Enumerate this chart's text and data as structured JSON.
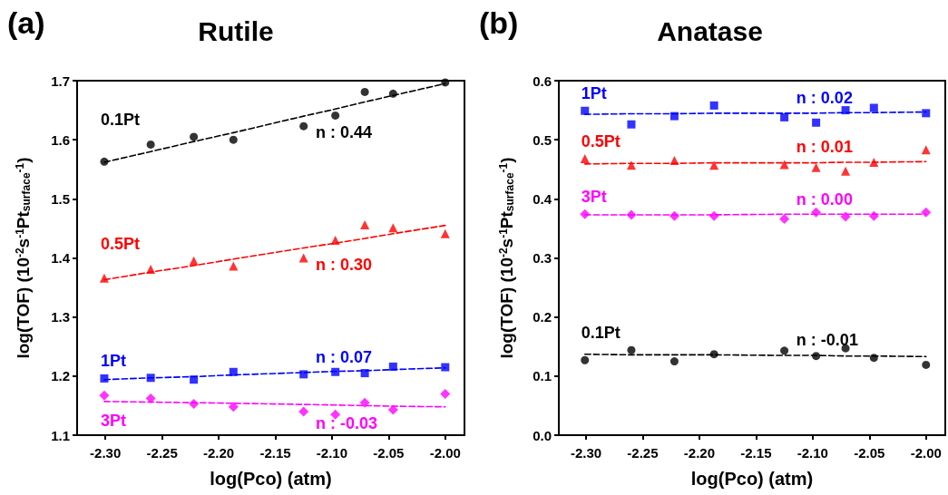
{
  "chart_data": [
    {
      "type": "scatter",
      "title": "Rutile",
      "annotations": [
        "(a)"
      ],
      "xlabel": "log(Pco) (atm)",
      "ylabel": "log(TOF) (10$^{-2}$s$^{-1}$Pt$_{surface}$$^{-1}$)",
      "x": [
        -2.301,
        -2.26,
        -2.222,
        -2.187,
        -2.125,
        -2.097,
        -2.071,
        -2.046,
        -2.0
      ],
      "xlim": [
        -2.325,
        -1.983
      ],
      "xticks": [
        {
          "value": -2.3,
          "label": "-2.30"
        },
        {
          "value": -2.25,
          "label": "-2.25"
        },
        {
          "value": -2.2,
          "label": "-2.20"
        },
        {
          "value": -2.15,
          "label": "-2.15"
        },
        {
          "value": -2.1,
          "label": "-2.10"
        },
        {
          "value": -2.05,
          "label": "-2.05"
        },
        {
          "value": -2.0,
          "label": "-2.00"
        }
      ],
      "ylim": [
        1.1,
        1.7
      ],
      "yticks": [
        1.1,
        1.2,
        1.3,
        1.4,
        1.5,
        1.6,
        1.7
      ],
      "series": [
        {
          "name": "0.1Pt",
          "color": "#000000",
          "marker": "circle",
          "values": [
            1.563,
            1.592,
            1.605,
            1.6,
            1.623,
            1.641,
            1.681,
            1.678,
            1.697
          ]
        },
        {
          "name": "0.5Pt",
          "color": "#ff0000",
          "marker": "triangle",
          "values": [
            1.366,
            1.381,
            1.395,
            1.386,
            1.4,
            1.43,
            1.456,
            1.451,
            1.441
          ]
        },
        {
          "name": "1Pt",
          "color": "#0000ff",
          "marker": "square",
          "values": [
            1.196,
            1.197,
            1.194,
            1.207,
            1.203,
            1.207,
            1.205,
            1.216,
            1.215
          ]
        },
        {
          "name": "3Pt",
          "color": "#ff00ff",
          "marker": "diamond",
          "values": [
            1.167,
            1.162,
            1.153,
            1.148,
            1.14,
            1.135,
            1.155,
            1.143,
            1.17
          ]
        },
        {
          "name": "n : 0.44",
          "type": "line",
          "color": "#000000",
          "marker": "none",
          "line_style": "dashed",
          "values": [
            1.562,
            1.58,
            1.597,
            1.612,
            1.64,
            1.652,
            1.664,
            1.675,
            1.695
          ]
        },
        {
          "name": "n : 0.30",
          "type": "line",
          "color": "#ff0000",
          "marker": "none",
          "line_style": "dashed",
          "values": [
            1.363,
            1.376,
            1.387,
            1.398,
            1.417,
            1.425,
            1.433,
            1.441,
            1.455
          ]
        },
        {
          "name": "n : 0.07",
          "type": "line",
          "color": "#0000ff",
          "marker": "none",
          "line_style": "dashed",
          "values": [
            1.194,
            1.197,
            1.199,
            1.202,
            1.206,
            1.208,
            1.209,
            1.211,
            1.214
          ]
        },
        {
          "name": "n : -0.03",
          "type": "line",
          "color": "#ff00ff",
          "marker": "none",
          "line_style": "dashed",
          "values": [
            1.157,
            1.156,
            1.155,
            1.154,
            1.152,
            1.151,
            1.15,
            1.149,
            1.148
          ]
        }
      ]
    },
    {
      "type": "scatter",
      "title": "Anatase",
      "annotations": [
        "(b)"
      ],
      "xlabel": "log(Pco) (atm)",
      "ylabel": "log(TOF) (10$^{-2}$s$^{-1}$Pt$_{surface}$$^{-1}$)",
      "x": [
        -2.301,
        -2.26,
        -2.222,
        -2.187,
        -2.125,
        -2.097,
        -2.071,
        -2.046,
        -2.0
      ],
      "xlim": [
        -2.324,
        -1.983
      ],
      "xticks": [
        {
          "value": -2.3,
          "label": "-2.30"
        },
        {
          "value": -2.25,
          "label": "-2.25"
        },
        {
          "value": -2.2,
          "label": "-2.20"
        },
        {
          "value": -2.15,
          "label": "-2.15"
        },
        {
          "value": -2.1,
          "label": "-2.10"
        },
        {
          "value": -2.05,
          "label": "-2.05"
        },
        {
          "value": -2.0,
          "label": "-2.00"
        }
      ],
      "ylim": [
        0,
        0.6
      ],
      "yticks": [
        {
          "value": 0,
          "label": "0.0"
        },
        0.1,
        0.2,
        0.3,
        0.4,
        0.5,
        0.6
      ],
      "series": [
        {
          "name": "1Pt",
          "color": "#0000ff",
          "marker": "square",
          "values": [
            0.549,
            0.526,
            0.54,
            0.558,
            0.538,
            0.529,
            0.55,
            0.554,
            0.545
          ]
        },
        {
          "name": "0.5Pt",
          "color": "#ff0000",
          "marker": "triangle",
          "values": [
            0.468,
            0.457,
            0.465,
            0.457,
            0.458,
            0.453,
            0.447,
            0.462,
            0.483
          ]
        },
        {
          "name": "3Pt",
          "color": "#ff00ff",
          "marker": "diamond",
          "values": [
            0.374,
            0.373,
            0.371,
            0.371,
            0.366,
            0.377,
            0.37,
            0.371,
            0.377
          ]
        },
        {
          "name": "0.1Pt",
          "color": "#000000",
          "marker": "circle",
          "values": [
            0.127,
            0.144,
            0.125,
            0.137,
            0.143,
            0.134,
            0.147,
            0.131,
            0.119
          ]
        },
        {
          "name": "n : 0.02",
          "type": "line",
          "color": "#0000ff",
          "marker": "none",
          "line_style": "dashed",
          "values": [
            0.543,
            0.544,
            0.544,
            0.545,
            0.545,
            0.545,
            0.546,
            0.546,
            0.547
          ]
        },
        {
          "name": "n : 0.01",
          "type": "line",
          "color": "#ff0000",
          "marker": "none",
          "line_style": "dashed",
          "values": [
            0.459,
            0.46,
            0.46,
            0.461,
            0.461,
            0.461,
            0.462,
            0.462,
            0.463
          ]
        },
        {
          "name": "n : 0.00",
          "type": "line",
          "color": "#ff00ff",
          "marker": "none",
          "line_style": "dashed",
          "values": [
            0.373,
            0.373,
            0.373,
            0.373,
            0.374,
            0.374,
            0.374,
            0.374,
            0.374
          ]
        },
        {
          "name": "n : -0.01",
          "type": "line",
          "color": "#000000",
          "marker": "none",
          "line_style": "dashed",
          "values": [
            0.137,
            0.136,
            0.136,
            0.136,
            0.135,
            0.135,
            0.134,
            0.134,
            0.133
          ]
        }
      ]
    }
  ]
}
